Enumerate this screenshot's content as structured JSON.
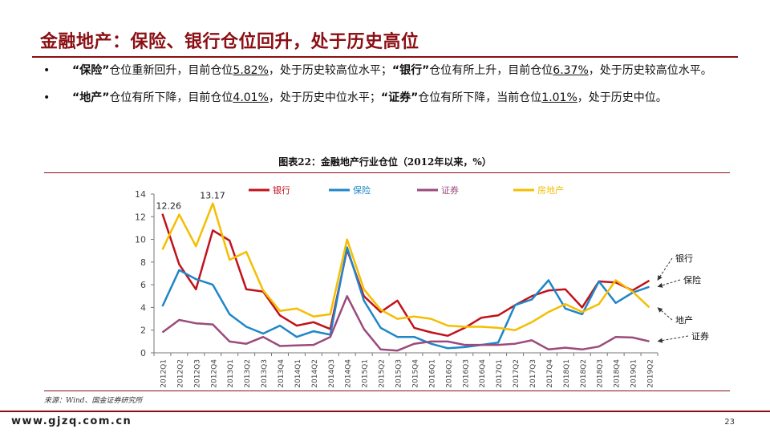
{
  "page": {
    "title": "金融地产：保险、银行仓位回升，处于历史高位",
    "bullets": [
      {
        "parts": [
          {
            "t": "“保险”",
            "b": true
          },
          {
            "t": "仓位重新回升，目前仓位"
          },
          {
            "t": "5.82%",
            "u": true
          },
          {
            "t": "，处于历史较高位水平；"
          },
          {
            "t": "“银行”",
            "b": true
          },
          {
            "t": "仓位有所上升，目前仓位"
          },
          {
            "t": "6.37%",
            "u": true
          },
          {
            "t": "，处于历史较高位水平。"
          }
        ]
      },
      {
        "parts": [
          {
            "t": "“地产”",
            "b": true
          },
          {
            "t": "仓位有所下降，目前仓位"
          },
          {
            "t": "4.01%",
            "u": true
          },
          {
            "t": "，处于历史中位水平；"
          },
          {
            "t": "“证券”",
            "b": true
          },
          {
            "t": "仓位有所下降，当前仓位"
          },
          {
            "t": "1.01%",
            "u": true
          },
          {
            "t": "，处于历史中位。"
          }
        ]
      }
    ],
    "bullet_symbol": "•",
    "figure_title": "图表22：金融地产行业仓位（2012年以来，%）",
    "source": "来源：Wind、国金证券研究所",
    "footer_url": "www.gjzq.com.cn",
    "page_number": "23"
  },
  "chart_data": {
    "type": "line",
    "categories": [
      "2012Q1",
      "2012Q2",
      "2012Q3",
      "2012Q4",
      "2013Q1",
      "2013Q2",
      "2013Q3",
      "2013Q4",
      "2014Q1",
      "2014Q2",
      "2014Q3",
      "2014Q4",
      "2015Q1",
      "2015Q2",
      "2015Q3",
      "2015Q4",
      "2016Q1",
      "2016Q2",
      "2016Q3",
      "2016Q4",
      "2017Q1",
      "2017Q2",
      "2017Q3",
      "2017Q4",
      "2018Q1",
      "2018Q2",
      "2018Q3",
      "2018Q4",
      "2019Q1",
      "2019Q2"
    ],
    "ylim": [
      0,
      14
    ],
    "yticks": [
      0,
      2,
      4,
      6,
      8,
      10,
      12,
      14
    ],
    "grid": false,
    "legend_position": "top",
    "series": [
      {
        "name": "银行",
        "color": "#c0121a",
        "values": [
          12.26,
          7.8,
          5.6,
          10.8,
          9.9,
          5.6,
          5.4,
          3.3,
          2.4,
          2.7,
          2.1,
          9.1,
          5.0,
          3.6,
          4.6,
          2.2,
          1.8,
          1.5,
          2.2,
          3.1,
          3.3,
          4.2,
          5.0,
          5.5,
          5.6,
          4.0,
          6.3,
          6.2,
          5.5,
          6.37
        ]
      },
      {
        "name": "保险",
        "color": "#1f86c8",
        "values": [
          4.1,
          7.3,
          6.5,
          6.0,
          3.4,
          2.3,
          1.7,
          2.4,
          1.4,
          1.9,
          1.6,
          9.3,
          4.6,
          2.2,
          1.4,
          1.4,
          0.8,
          0.4,
          0.5,
          0.7,
          0.9,
          4.2,
          4.7,
          6.4,
          3.9,
          3.4,
          6.3,
          4.4,
          5.3,
          5.82
        ]
      },
      {
        "name": "证券",
        "color": "#9b4a7c",
        "values": [
          1.8,
          2.9,
          2.6,
          2.5,
          1.0,
          0.8,
          1.4,
          0.6,
          0.65,
          0.7,
          1.4,
          5.0,
          2.1,
          0.3,
          0.2,
          0.8,
          1.0,
          1.0,
          0.7,
          0.7,
          0.7,
          0.8,
          1.1,
          0.3,
          0.45,
          0.3,
          0.55,
          1.4,
          1.35,
          1.01
        ]
      },
      {
        "name": "房地产",
        "color": "#f4be00",
        "values": [
          9.1,
          12.2,
          9.4,
          13.17,
          8.2,
          8.9,
          5.5,
          3.7,
          3.9,
          3.2,
          3.4,
          10.0,
          5.6,
          3.8,
          3.0,
          3.2,
          3.0,
          2.4,
          2.3,
          2.3,
          2.2,
          2.0,
          2.7,
          3.6,
          4.3,
          3.6,
          4.3,
          6.4,
          5.4,
          4.01
        ]
      }
    ],
    "data_labels": [
      {
        "series": "银行",
        "index": 0,
        "text": "12.26"
      },
      {
        "series": "房地产",
        "index": 3,
        "text": "13.17"
      }
    ],
    "end_labels": [
      {
        "text": "银行",
        "series": "银行"
      },
      {
        "text": "保险",
        "series": "保险"
      },
      {
        "text": "地产",
        "series": "房地产"
      },
      {
        "text": "证券",
        "series": "证券"
      }
    ]
  }
}
